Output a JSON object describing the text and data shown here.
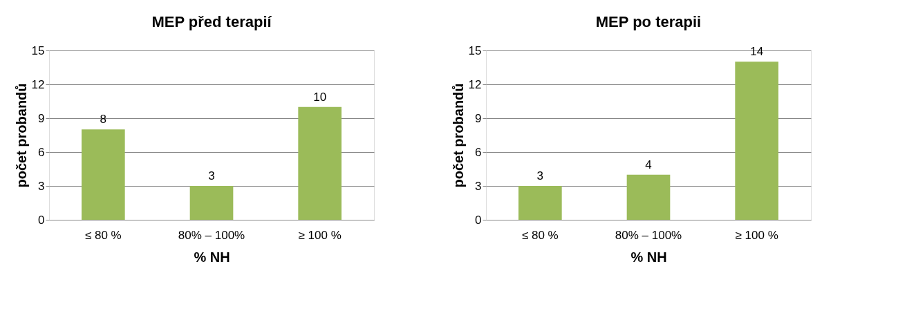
{
  "chart_data": [
    {
      "type": "bar",
      "title": "MEP před terapií",
      "xlabel": "% NH",
      "ylabel": "počet probandů",
      "categories": [
        "≤ 80 %",
        "80% – 100%",
        "≥ 100 %"
      ],
      "values": [
        8,
        3,
        10
      ],
      "color": "#9bbb59",
      "ylim": [
        0,
        15
      ],
      "yticks": [
        0,
        3,
        6,
        9,
        12,
        15
      ],
      "grid": "y",
      "data_labels": true
    },
    {
      "type": "bar",
      "title": "MEP po terapii",
      "xlabel": "% NH",
      "ylabel": "počet probandů",
      "categories": [
        "≤ 80 %",
        "80% – 100%",
        "≥ 100 %"
      ],
      "values": [
        3,
        4,
        14
      ],
      "color": "#9bbb59",
      "ylim": [
        0,
        15
      ],
      "yticks": [
        0,
        3,
        6,
        9,
        12,
        15
      ],
      "grid": "y",
      "data_labels": true
    }
  ]
}
